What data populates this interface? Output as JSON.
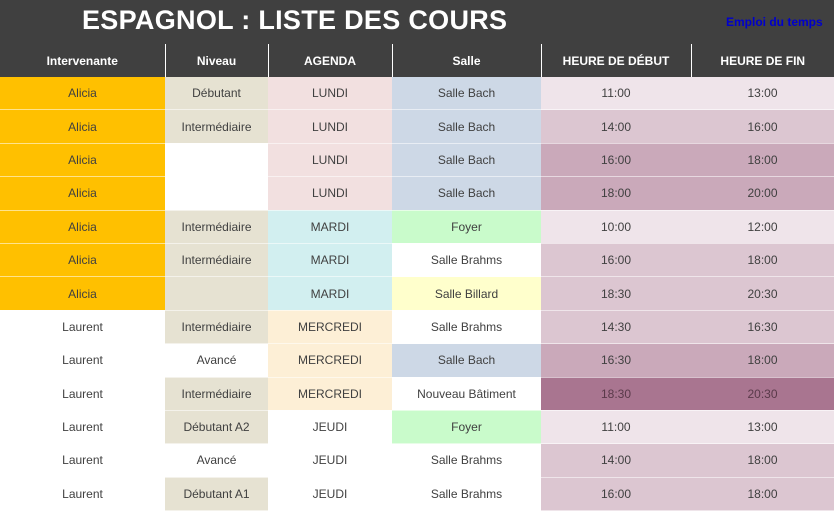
{
  "title": "ESPAGNOL : LISTE DES COURS",
  "link_label": "Emploi du temps",
  "columns": [
    "Intervenante",
    "Niveau",
    "AGENDA",
    "Salle",
    "HEURE DE DÉBUT",
    "HEURE DE FIN"
  ],
  "colors": {
    "header_bg": "#404040",
    "intervenante_alicia": "#ffc000",
    "niveau": "#e6e2d2",
    "lundi": "#f2e0e0",
    "mardi": "#d2eff0",
    "mercredi": "#fdefd6",
    "salle_bach": "#cdd8e6",
    "foyer": "#c9fbcb",
    "salle_billard": "#ffffcc",
    "time_1": "#efe4ea",
    "time_2": "#dcc6d1",
    "time_3": "#caa9ba",
    "time_4": "#a97590"
  },
  "rows": [
    {
      "intervenante": "Alicia",
      "niveau": "Débutant",
      "agenda": "LUNDI",
      "salle": "Salle Bach",
      "debut": "11:00",
      "fin": "13:00"
    },
    {
      "intervenante": "Alicia",
      "niveau": "Intermédiaire",
      "agenda": "LUNDI",
      "salle": "Salle Bach",
      "debut": "14:00",
      "fin": "16:00"
    },
    {
      "intervenante": "Alicia",
      "niveau": "",
      "agenda": "LUNDI",
      "salle": "Salle Bach",
      "debut": "16:00",
      "fin": "18:00"
    },
    {
      "intervenante": "Alicia",
      "niveau": "",
      "agenda": "LUNDI",
      "salle": "Salle Bach",
      "debut": "18:00",
      "fin": "20:00"
    },
    {
      "intervenante": "Alicia",
      "niveau": "Intermédiaire",
      "agenda": "MARDI",
      "salle": "Foyer",
      "debut": "10:00",
      "fin": "12:00"
    },
    {
      "intervenante": "Alicia",
      "niveau": "Intermédiaire",
      "agenda": "MARDI",
      "salle": "Salle Brahms",
      "debut": "16:00",
      "fin": "18:00"
    },
    {
      "intervenante": "Alicia",
      "niveau": "",
      "agenda": "MARDI",
      "salle": "Salle Billard",
      "debut": "18:30",
      "fin": "20:30"
    },
    {
      "intervenante": "Laurent",
      "niveau": "Intermédiaire",
      "agenda": "MERCREDI",
      "salle": "Salle Brahms",
      "debut": "14:30",
      "fin": "16:30"
    },
    {
      "intervenante": "Laurent",
      "niveau": "Avancé",
      "agenda": "MERCREDI",
      "salle": "Salle Bach",
      "debut": "16:30",
      "fin": "18:00"
    },
    {
      "intervenante": "Laurent",
      "niveau": "Intermédiaire",
      "agenda": "MERCREDI",
      "salle": "Nouveau Bâtiment",
      "debut": "18:30",
      "fin": "20:30"
    },
    {
      "intervenante": "Laurent",
      "niveau": "Débutant A2",
      "agenda": "JEUDI",
      "salle": "Foyer",
      "debut": "11:00",
      "fin": "13:00"
    },
    {
      "intervenante": "Laurent",
      "niveau": "Avancé",
      "agenda": "JEUDI",
      "salle": "Salle Brahms",
      "debut": "14:00",
      "fin": "18:00"
    },
    {
      "intervenante": "Laurent",
      "niveau": "Débutant A1",
      "agenda": "JEUDI",
      "salle": "Salle Brahms",
      "debut": "16:00",
      "fin": "18:00"
    }
  ]
}
